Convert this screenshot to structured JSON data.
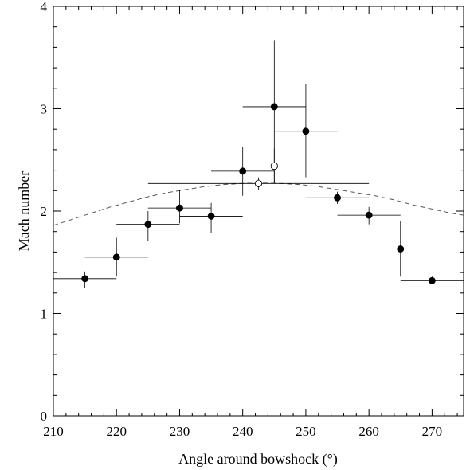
{
  "chart_data": {
    "type": "scatter",
    "xlabel": "Angle around bowshock (°)",
    "ylabel": "Mach number",
    "xlim": [
      210,
      275
    ],
    "ylim": [
      0,
      4
    ],
    "x_ticks": [
      210,
      220,
      230,
      240,
      250,
      260,
      270
    ],
    "y_ticks": [
      0,
      1,
      2,
      3,
      4
    ],
    "x_tick_labels": [
      "210",
      "220",
      "230",
      "240",
      "250",
      "260",
      "270"
    ],
    "y_tick_labels": [
      "0",
      "1",
      "2",
      "3",
      "4"
    ],
    "grid": false,
    "series": [
      {
        "marker": "filled-circle",
        "color": "#000000",
        "points": [
          {
            "x": 215,
            "y": 1.34,
            "xerr": 5,
            "yerr_low": 0.09,
            "yerr_high": 0.07
          },
          {
            "x": 220,
            "y": 1.55,
            "xerr": 5,
            "yerr_low": 0.19,
            "yerr_high": 0.19
          },
          {
            "x": 225,
            "y": 1.87,
            "xerr": 5,
            "yerr_low": 0.16,
            "yerr_high": 0.13
          },
          {
            "x": 230,
            "y": 2.03,
            "xerr": 5,
            "yerr_low": 0.15,
            "yerr_high": 0.18
          },
          {
            "x": 235,
            "y": 1.95,
            "xerr": 5,
            "yerr_low": 0.16,
            "yerr_high": 0.13
          },
          {
            "x": 240,
            "y": 2.39,
            "xerr": 5,
            "yerr_low": 0.24,
            "yerr_high": 0.24
          },
          {
            "x": 245,
            "y": 3.02,
            "xerr": 5,
            "yerr_low": 0.75,
            "yerr_high": 0.65
          },
          {
            "x": 250,
            "y": 2.78,
            "xerr": 5,
            "yerr_low": 0.45,
            "yerr_high": 0.46
          },
          {
            "x": 255,
            "y": 2.13,
            "xerr": 5,
            "yerr_low": 0.06,
            "yerr_high": 0.06
          },
          {
            "x": 260,
            "y": 1.96,
            "xerr": 5,
            "yerr_low": 0.09,
            "yerr_high": 0.08
          },
          {
            "x": 265,
            "y": 1.63,
            "xerr": 5,
            "yerr_low": 0.27,
            "yerr_high": 0.27
          },
          {
            "x": 270,
            "y": 1.32,
            "xerr": 5,
            "yerr_low": 0.03,
            "yerr_high": 0.04
          }
        ]
      },
      {
        "marker": "open-circle",
        "color": "#000000",
        "points": [
          {
            "x": 245,
            "y": 2.44,
            "xerr": 10,
            "yerr_low": 0.17,
            "yerr_high": 0.17
          },
          {
            "x": 242.5,
            "y": 2.27,
            "xerr": 17.5,
            "yerr_low": 0.06,
            "yerr_high": 0.06
          }
        ]
      }
    ],
    "curve": {
      "style": "dashed",
      "color": "#555555",
      "x": [
        210,
        213,
        216,
        219,
        222,
        225,
        228,
        231,
        234,
        237,
        240,
        243,
        246,
        249,
        252,
        255,
        258,
        261,
        264,
        267,
        270,
        273,
        275
      ],
      "y": [
        1.86,
        1.92,
        1.98,
        2.04,
        2.09,
        2.14,
        2.18,
        2.21,
        2.24,
        2.26,
        2.27,
        2.275,
        2.27,
        2.26,
        2.24,
        2.21,
        2.18,
        2.15,
        2.11,
        2.06,
        2.02,
        1.98,
        1.96
      ]
    }
  }
}
